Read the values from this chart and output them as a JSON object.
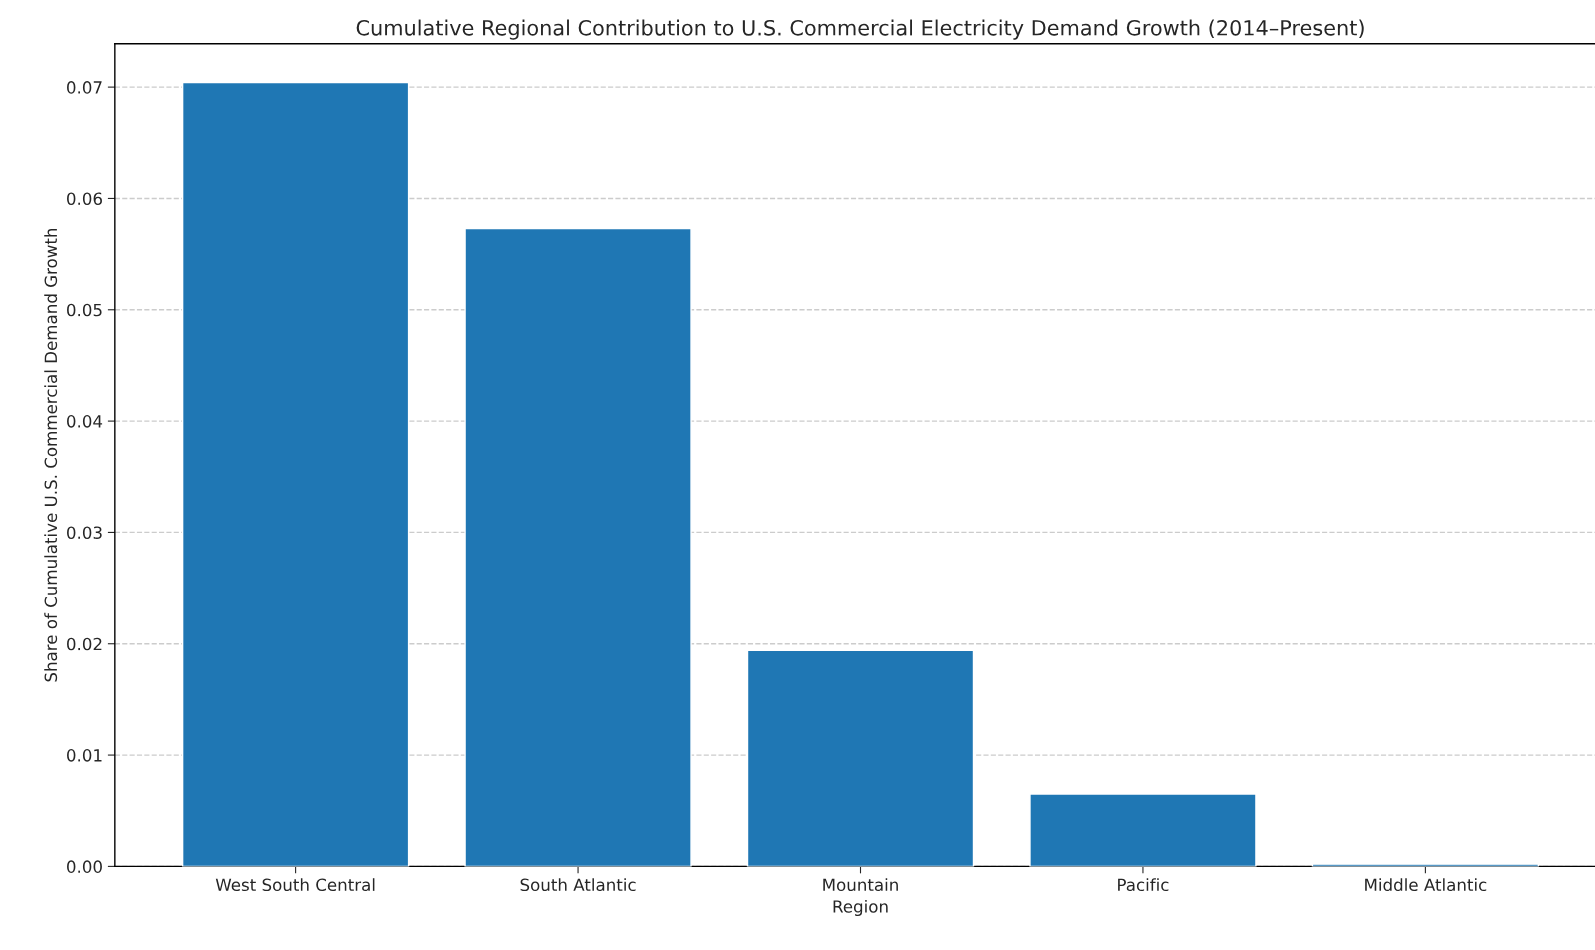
{
  "chart_data": {
    "type": "bar",
    "title": "Cumulative Regional Contribution to U.S. Commercial Electricity Demand Growth (2014–Present)",
    "xlabel": "Region",
    "ylabel": "Share of Cumulative U.S. Commercial Demand Growth",
    "categories": [
      "West South Central",
      "South Atlantic",
      "Mountain",
      "Pacific",
      "Middle Atlantic"
    ],
    "values": [
      0.0704,
      0.0573,
      0.0194,
      0.0065,
      0.0002
    ],
    "color": "#1f77b4",
    "ylim": [
      0,
      0.0739
    ],
    "yticks": [
      {
        "value": 0,
        "label": "0.00"
      },
      {
        "value": 0.01,
        "label": "0.01"
      },
      {
        "value": 0.02,
        "label": "0.02"
      },
      {
        "value": 0.03,
        "label": "0.03"
      },
      {
        "value": 0.04,
        "label": "0.04"
      },
      {
        "value": 0.05,
        "label": "0.05"
      },
      {
        "value": 0.06,
        "label": "0.06"
      },
      {
        "value": 0.07,
        "label": "0.07"
      }
    ],
    "grid": "y",
    "line_style": "dashed"
  }
}
